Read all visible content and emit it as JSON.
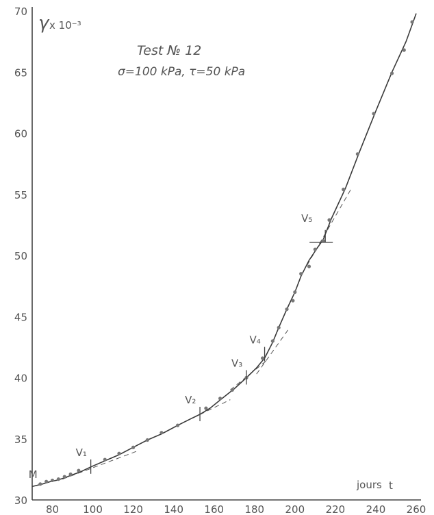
{
  "chart_data": {
    "type": "line",
    "xlabel": "t",
    "xunit": "jours",
    "ylabel": "γ",
    "ylabel_multiplier": "x 10⁻³",
    "title_line1": "Test  № 12",
    "title_line2": "σ=100 kPa,  τ=50 kPa",
    "xlim": [
      70,
      260
    ],
    "ylim": [
      30,
      70
    ],
    "x_ticks": [
      80,
      100,
      120,
      140,
      160,
      180,
      200,
      220,
      240,
      260
    ],
    "y_ticks": [
      30,
      35,
      40,
      45,
      50,
      55,
      60,
      65,
      70
    ],
    "grid": false,
    "series": [
      {
        "points": [
          {
            "x": 70,
            "y": 31.1
          },
          {
            "x": 75,
            "y": 31.3
          },
          {
            "x": 79,
            "y": 31.5
          },
          {
            "x": 82,
            "y": 31.6
          },
          {
            "x": 86,
            "y": 31.8
          },
          {
            "x": 89,
            "y": 32.0
          },
          {
            "x": 94,
            "y": 32.3
          },
          {
            "x": 99,
            "y": 32.7
          },
          {
            "x": 106,
            "y": 33.2
          },
          {
            "x": 113,
            "y": 33.7
          },
          {
            "x": 120,
            "y": 34.3
          },
          {
            "x": 127,
            "y": 34.9
          },
          {
            "x": 134,
            "y": 35.4
          },
          {
            "x": 142,
            "y": 36.1
          },
          {
            "x": 148,
            "y": 36.6
          },
          {
            "x": 153,
            "y": 37.0
          },
          {
            "x": 158,
            "y": 37.5
          },
          {
            "x": 164,
            "y": 38.3
          },
          {
            "x": 170,
            "y": 39.1
          },
          {
            "x": 176,
            "y": 40.0
          },
          {
            "x": 181,
            "y": 40.8
          },
          {
            "x": 185,
            "y": 41.6
          },
          {
            "x": 189,
            "y": 42.9
          },
          {
            "x": 192,
            "y": 44.1
          },
          {
            "x": 196,
            "y": 45.6
          },
          {
            "x": 200,
            "y": 47.0
          },
          {
            "x": 203,
            "y": 48.3
          },
          {
            "x": 207,
            "y": 49.6
          },
          {
            "x": 211,
            "y": 50.6
          },
          {
            "x": 214,
            "y": 51.3
          },
          {
            "x": 218,
            "y": 53.0
          },
          {
            "x": 225,
            "y": 55.5
          },
          {
            "x": 232,
            "y": 58.5
          },
          {
            "x": 240,
            "y": 61.8
          },
          {
            "x": 248,
            "y": 65.0
          },
          {
            "x": 255,
            "y": 67.5
          },
          {
            "x": 260,
            "y": 69.8
          }
        ]
      }
    ],
    "observations": [
      {
        "x": 74,
        "y": 31.3
      },
      {
        "x": 77,
        "y": 31.5
      },
      {
        "x": 80,
        "y": 31.6
      },
      {
        "x": 83,
        "y": 31.7
      },
      {
        "x": 86,
        "y": 31.9
      },
      {
        "x": 89,
        "y": 32.1
      },
      {
        "x": 93,
        "y": 32.4
      },
      {
        "x": 106,
        "y": 33.3
      },
      {
        "x": 113,
        "y": 33.8
      },
      {
        "x": 120,
        "y": 34.3
      },
      {
        "x": 127,
        "y": 34.9
      },
      {
        "x": 134,
        "y": 35.5
      },
      {
        "x": 142,
        "y": 36.1
      },
      {
        "x": 156,
        "y": 37.5
      },
      {
        "x": 163,
        "y": 38.3
      },
      {
        "x": 169,
        "y": 39.0
      },
      {
        "x": 176,
        "y": 40.0
      },
      {
        "x": 184,
        "y": 41.6
      },
      {
        "x": 189,
        "y": 43.0
      },
      {
        "x": 192,
        "y": 44.1
      },
      {
        "x": 196,
        "y": 45.6
      },
      {
        "x": 199,
        "y": 46.3
      },
      {
        "x": 200,
        "y": 47.0
      },
      {
        "x": 203,
        "y": 48.5
      },
      {
        "x": 207,
        "y": 49.1
      },
      {
        "x": 210,
        "y": 50.5
      },
      {
        "x": 214,
        "y": 51.2
      },
      {
        "x": 217,
        "y": 52.9
      },
      {
        "x": 224,
        "y": 55.4
      },
      {
        "x": 231,
        "y": 58.3
      },
      {
        "x": 239,
        "y": 61.6
      },
      {
        "x": 248,
        "y": 64.9
      },
      {
        "x": 254,
        "y": 66.8
      },
      {
        "x": 258,
        "y": 69.1
      }
    ],
    "annotations": [
      {
        "label": "M",
        "x": 74,
        "y": 31.3
      },
      {
        "label": "V₁",
        "x": 99,
        "y": 32.7
      },
      {
        "label": "V₂",
        "x": 153,
        "y": 37.0
      },
      {
        "label": "V₃",
        "x": 176,
        "y": 40.0
      },
      {
        "label": "V₄",
        "x": 185,
        "y": 41.9
      },
      {
        "label": "V₅",
        "x": 214,
        "y": 51.3
      }
    ],
    "tangent_lines": [
      {
        "x1": 85,
        "y1": 31.7,
        "x2": 122,
        "y2": 34.0
      },
      {
        "x1": 142,
        "y1": 36.1,
        "x2": 168,
        "y2": 38.2
      },
      {
        "x1": 168,
        "y1": 39.0,
        "x2": 186,
        "y2": 41.4
      },
      {
        "x1": 181,
        "y1": 40.3,
        "x2": 197,
        "y2": 44.0
      },
      {
        "x1": 206,
        "y1": 49.2,
        "x2": 228,
        "y2": 55.5
      }
    ]
  }
}
